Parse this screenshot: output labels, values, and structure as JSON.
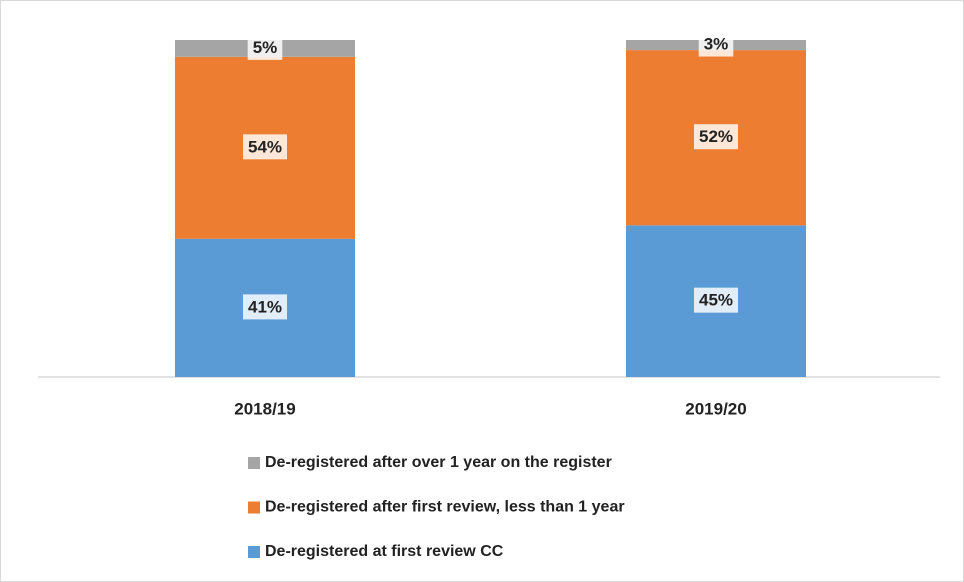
{
  "chart_data": {
    "type": "stacked_bar",
    "categories": [
      "2018/19",
      "2019/20"
    ],
    "series": [
      {
        "name": "De-registered at first review CC",
        "color": "#5b9bd5",
        "values": [
          41,
          45
        ],
        "value_labels": [
          "41%",
          "45%"
        ]
      },
      {
        "name": "De-registered after first review, less than 1 year",
        "color": "#ed7d31",
        "values": [
          54,
          52
        ],
        "value_labels": [
          "54%",
          "52%"
        ]
      },
      {
        "name": "De-registered after over 1 year on the register",
        "color": "#a5a5a5",
        "values": [
          5,
          3
        ],
        "value_labels": [
          "5%",
          "3%"
        ]
      }
    ]
  }
}
